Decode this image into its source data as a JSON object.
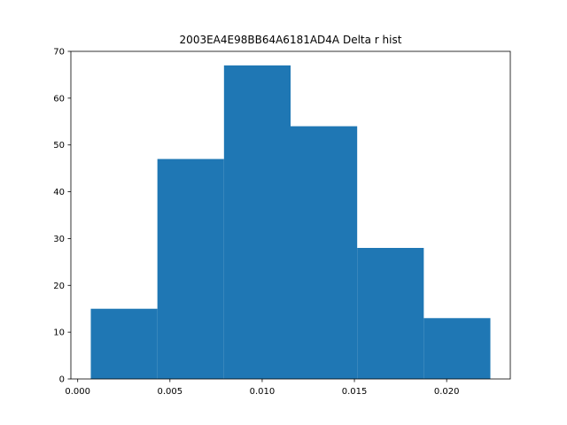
{
  "chart_data": {
    "type": "bar",
    "title": "2003EA4E98BB64A6181AD4A Delta r hist",
    "xlabel": "",
    "ylabel": "",
    "bin_edges": [
      0.00071,
      0.00432,
      0.00793,
      0.01154,
      0.01515,
      0.01876,
      0.02237
    ],
    "counts": [
      15,
      47,
      67,
      54,
      28,
      13
    ],
    "xlim": [
      -0.00037,
      0.02345
    ],
    "ylim": [
      0,
      70
    ],
    "xticks": [
      0.0,
      0.005,
      0.01,
      0.015,
      0.02
    ],
    "xtick_labels": [
      "0.000",
      "0.005",
      "0.010",
      "0.015",
      "0.020"
    ],
    "yticks": [
      0,
      10,
      20,
      30,
      40,
      50,
      60,
      70
    ],
    "ytick_labels": [
      "0",
      "10",
      "20",
      "30",
      "40",
      "50",
      "60",
      "70"
    ],
    "grid": false,
    "bar_color": "#1f77b4"
  }
}
